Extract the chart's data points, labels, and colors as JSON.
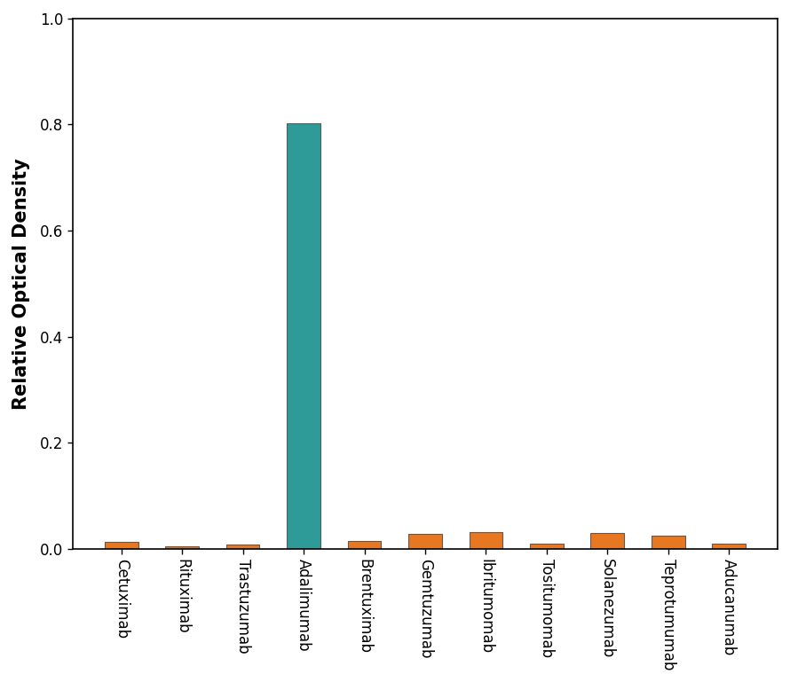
{
  "categories": [
    "Cetuximab",
    "Rituximab",
    "Trastuzumab",
    "Adalimumab",
    "Brentuximab",
    "Gemtuzumab",
    "Ibritumomab",
    "Tositumomab",
    "Solanezumab",
    "Teprotumumab",
    "Aducanumab"
  ],
  "values": [
    0.013,
    0.005,
    0.008,
    0.802,
    0.015,
    0.027,
    0.031,
    0.009,
    0.03,
    0.024,
    0.01
  ],
  "bar_colors": [
    "#e87722",
    "#e87722",
    "#e87722",
    "#2e9b99",
    "#e87722",
    "#e87722",
    "#e87722",
    "#e87722",
    "#e87722",
    "#e87722",
    "#e87722"
  ],
  "ylabel": "Relative Optical Density",
  "ylim": [
    0.0,
    1.0
  ],
  "yticks": [
    0.0,
    0.2,
    0.4,
    0.6,
    0.8,
    1.0
  ],
  "background_color": "#ffffff",
  "bar_edge_color": "#5a5a5a",
  "ylabel_fontsize": 15,
  "tick_fontsize": 12,
  "label_rotation": 270,
  "bar_width": 0.55,
  "figsize": [
    8.9,
    7.69
  ],
  "dpi": 100
}
